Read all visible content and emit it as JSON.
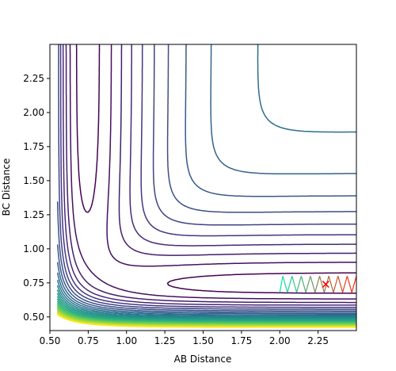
{
  "chart_data": {
    "type": "contour",
    "xlabel": "AB Distance",
    "ylabel": "BC Distance",
    "xlim": [
      0.5,
      2.5
    ],
    "ylim": [
      0.4,
      2.5
    ],
    "xticks": [
      "0.50",
      "0.75",
      "1.00",
      "1.25",
      "1.50",
      "1.75",
      "2.00",
      "2.25"
    ],
    "yticks": [
      "0.50",
      "0.75",
      "1.00",
      "1.25",
      "1.50",
      "1.75",
      "2.00",
      "2.25"
    ],
    "grid": false,
    "colormap": "viridis",
    "surface": {
      "type": "LEPS-like potential energy surface",
      "well_depth": 1.0,
      "morse_a": 3.0,
      "equilibrium_distance": 0.74,
      "contour_levels": 26,
      "level_min": -0.95,
      "level_max": 1.5
    },
    "trajectory": {
      "color_start": "#00e5a8",
      "color_end": "#ff2a00",
      "points": [
        [
          2.0,
          0.68
        ],
        [
          2.02,
          0.8
        ],
        [
          2.05,
          0.68
        ],
        [
          2.08,
          0.8
        ],
        [
          2.11,
          0.68
        ],
        [
          2.14,
          0.8
        ],
        [
          2.17,
          0.68
        ],
        [
          2.2,
          0.8
        ],
        [
          2.23,
          0.68
        ],
        [
          2.26,
          0.8
        ],
        [
          2.29,
          0.68
        ],
        [
          2.32,
          0.8
        ],
        [
          2.35,
          0.68
        ],
        [
          2.38,
          0.8
        ],
        [
          2.41,
          0.68
        ],
        [
          2.44,
          0.8
        ],
        [
          2.47,
          0.68
        ],
        [
          2.5,
          0.8
        ]
      ]
    },
    "marker": {
      "x": 2.3,
      "y": 0.74,
      "symbol": "x",
      "color": "#ff0000"
    }
  }
}
